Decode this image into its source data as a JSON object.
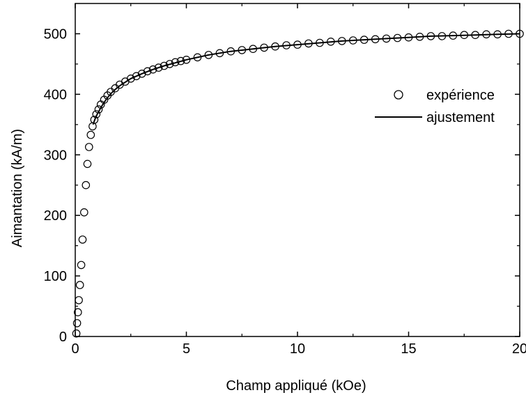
{
  "chart_data": {
    "type": "scatter",
    "title": "",
    "xlabel": "Champ appliqué (kOe)",
    "ylabel": "Aimantation (kA/m)",
    "xlim": [
      0,
      20
    ],
    "ylim": [
      0,
      550
    ],
    "xticks": [
      0,
      5,
      10,
      15,
      20
    ],
    "yticks": [
      0,
      100,
      200,
      300,
      400,
      500
    ],
    "grid": false,
    "legend_position": "right",
    "series": [
      {
        "name": "expérience",
        "style": "open-circle",
        "x": [
          0.05,
          0.08,
          0.12,
          0.16,
          0.21,
          0.27,
          0.33,
          0.4,
          0.48,
          0.55,
          0.62,
          0.7,
          0.78,
          0.86,
          0.95,
          1.05,
          1.15,
          1.3,
          1.45,
          1.6,
          1.8,
          2.0,
          2.25,
          2.5,
          2.75,
          3.0,
          3.25,
          3.5,
          3.75,
          4.0,
          4.25,
          4.5,
          4.75,
          5.0,
          5.5,
          6.0,
          6.5,
          7.0,
          7.5,
          8.0,
          8.5,
          9.0,
          9.5,
          10.0,
          10.5,
          11.0,
          11.5,
          12.0,
          12.5,
          13.0,
          13.5,
          14.0,
          14.5,
          15.0,
          15.5,
          16.0,
          16.5,
          17.0,
          17.5,
          18.0,
          18.5,
          19.0,
          19.5,
          20.0
        ],
        "y": [
          5,
          22,
          40,
          60,
          85,
          118,
          160,
          205,
          250,
          285,
          313,
          333,
          347,
          358,
          367,
          375,
          383,
          391,
          398,
          404,
          410,
          416,
          421,
          426,
          430,
          434,
          438,
          441,
          444,
          447,
          450,
          453,
          455,
          457,
          461,
          465,
          468,
          471,
          473,
          475,
          477,
          479,
          481,
          482,
          484,
          485,
          487,
          488,
          489,
          490,
          491,
          492,
          493,
          494,
          495,
          496,
          496,
          497,
          498,
          498,
          499,
          499,
          500,
          500
        ]
      },
      {
        "name": "ajustement",
        "style": "line",
        "color": "#000000",
        "x": [
          0.8,
          0.9,
          1.0,
          1.2,
          1.4,
          1.6,
          1.8,
          2.0,
          2.5,
          3.0,
          3.5,
          4.0,
          4.5,
          5.0,
          6.0,
          7.0,
          8.0,
          9.0,
          10.0,
          11.0,
          12.0,
          13.0,
          14.0,
          15.0,
          16.0,
          17.0,
          18.0,
          19.0,
          20.0
        ],
        "y": [
          350,
          360,
          368,
          381,
          392,
          401,
          408,
          414,
          426,
          434,
          441,
          447,
          452,
          457,
          465,
          471,
          475,
          479,
          482,
          485,
          488,
          490,
          492,
          494,
          496,
          497,
          498,
          499,
          500
        ]
      }
    ]
  }
}
